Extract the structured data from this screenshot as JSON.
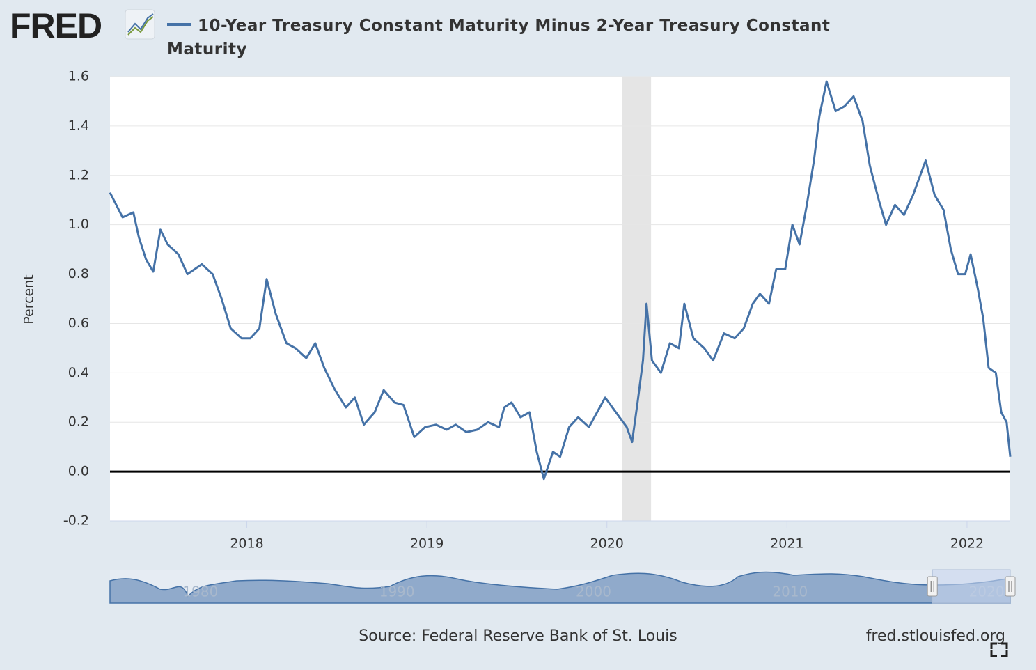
{
  "brand": "FRED",
  "chart_data": {
    "type": "line",
    "y_label": "Percent",
    "x": [
      2017.24,
      2017.31,
      2017.37,
      2017.4,
      2017.44,
      2017.48,
      2017.52,
      2017.56,
      2017.62,
      2017.67,
      2017.75,
      2017.81,
      2017.86,
      2017.91,
      2017.97,
      2018.02,
      2018.07,
      2018.11,
      2018.16,
      2018.22,
      2018.27,
      2018.33,
      2018.38,
      2018.43,
      2018.49,
      2018.55,
      2018.6,
      2018.65,
      2018.71,
      2018.76,
      2018.82,
      2018.87,
      2018.93,
      2018.99,
      2019.05,
      2019.11,
      2019.16,
      2019.22,
      2019.28,
      2019.34,
      2019.4,
      2019.43,
      2019.47,
      2019.52,
      2019.57,
      2019.61,
      2019.65,
      2019.7,
      2019.74,
      2019.79,
      2019.84,
      2019.9,
      2019.96,
      2019.99,
      2020.05,
      2020.11,
      2020.14,
      2020.17,
      2020.2,
      2020.22,
      2020.25,
      2020.3,
      2020.35,
      2020.4,
      2020.43,
      2020.48,
      2020.54,
      2020.59,
      2020.65,
      2020.71,
      2020.76,
      2020.81,
      2020.85,
      2020.9,
      2020.94,
      2020.99,
      2021.03,
      2021.07,
      2021.11,
      2021.15,
      2021.18,
      2021.22,
      2021.27,
      2021.32,
      2021.37,
      2021.42,
      2021.46,
      2021.51,
      2021.55,
      2021.6,
      2021.65,
      2021.7,
      2021.73,
      2021.77,
      2021.82,
      2021.87,
      2021.91,
      2021.95,
      2021.99,
      2022.02,
      2022.06,
      2022.09,
      2022.12,
      2022.16,
      2022.19,
      2022.22,
      2022.24
    ],
    "series": [
      {
        "name": "10-Year Treasury Constant Maturity Minus 2-Year Treasury Constant Maturity",
        "color": "#4572a7",
        "values": [
          1.13,
          1.03,
          1.05,
          0.95,
          0.86,
          0.81,
          0.98,
          0.92,
          0.88,
          0.8,
          0.84,
          0.8,
          0.7,
          0.58,
          0.54,
          0.54,
          0.58,
          0.78,
          0.64,
          0.52,
          0.5,
          0.46,
          0.52,
          0.42,
          0.33,
          0.26,
          0.3,
          0.19,
          0.24,
          0.33,
          0.28,
          0.27,
          0.14,
          0.18,
          0.19,
          0.17,
          0.19,
          0.16,
          0.17,
          0.2,
          0.18,
          0.26,
          0.28,
          0.22,
          0.24,
          0.08,
          -0.03,
          0.08,
          0.06,
          0.18,
          0.22,
          0.18,
          0.26,
          0.3,
          0.24,
          0.18,
          0.12,
          0.28,
          0.45,
          0.68,
          0.45,
          0.4,
          0.52,
          0.5,
          0.68,
          0.54,
          0.5,
          0.45,
          0.56,
          0.54,
          0.58,
          0.68,
          0.72,
          0.68,
          0.82,
          0.82,
          1.0,
          0.92,
          1.08,
          1.26,
          1.44,
          1.58,
          1.46,
          1.48,
          1.52,
          1.42,
          1.24,
          1.1,
          1.0,
          1.08,
          1.04,
          1.12,
          1.18,
          1.26,
          1.12,
          1.06,
          0.9,
          0.8,
          0.8,
          0.88,
          0.74,
          0.62,
          0.42,
          0.4,
          0.24,
          0.2,
          0.06
        ]
      }
    ],
    "xlim": [
      2017.24,
      2022.24
    ],
    "xticks": [
      2018,
      2019,
      2020,
      2021,
      2022
    ],
    "ylim": [
      -0.2,
      1.6
    ],
    "yticks": [
      -0.2,
      {
        "value": 0,
        "label": "0.0"
      },
      0.2,
      0.4,
      0.6,
      0.8,
      {
        "value": 1,
        "label": "1.0"
      },
      1.2,
      1.4,
      1.6
    ],
    "grid": true,
    "zero_line": true,
    "shaded_x": [
      2020.085,
      2020.245
    ],
    "navigator": {
      "xlim": [
        1975.4,
        2021.2
      ],
      "xticks": [
        1980,
        1990,
        2000,
        2010,
        2020
      ]
    },
    "source": "Source: Federal Reserve Bank of St. Louis",
    "site": "fred.stlouisfed.org"
  }
}
